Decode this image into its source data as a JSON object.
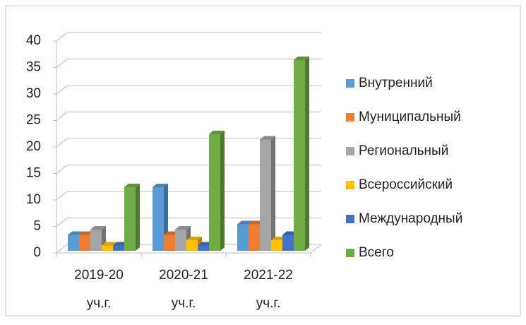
{
  "chart_data": {
    "type": "bar3d",
    "categories": [
      "2019-20 уч.г.",
      "2020-21 уч.г.",
      "2021-22 уч.г."
    ],
    "series": [
      {
        "name": "Внутренний",
        "color": "#5b9bd5",
        "values": [
          3,
          12,
          5
        ]
      },
      {
        "name": "Муниципальный",
        "color": "#ed7d31",
        "values": [
          3,
          3,
          5
        ]
      },
      {
        "name": "Региональный",
        "color": "#a5a5a5",
        "values": [
          4,
          4,
          21
        ]
      },
      {
        "name": "Всероссийский",
        "color": "#ffc000",
        "values": [
          1,
          2,
          2
        ]
      },
      {
        "name": "Международный",
        "color": "#4472c4",
        "values": [
          1,
          1,
          3
        ]
      },
      {
        "name": "Всего",
        "color": "#70ad47",
        "values": [
          12,
          22,
          36
        ]
      }
    ],
    "ylim": [
      0,
      40
    ],
    "yticks": [
      0,
      5,
      10,
      15,
      20,
      25,
      30,
      35,
      40
    ],
    "grid": true,
    "legend": "right"
  }
}
